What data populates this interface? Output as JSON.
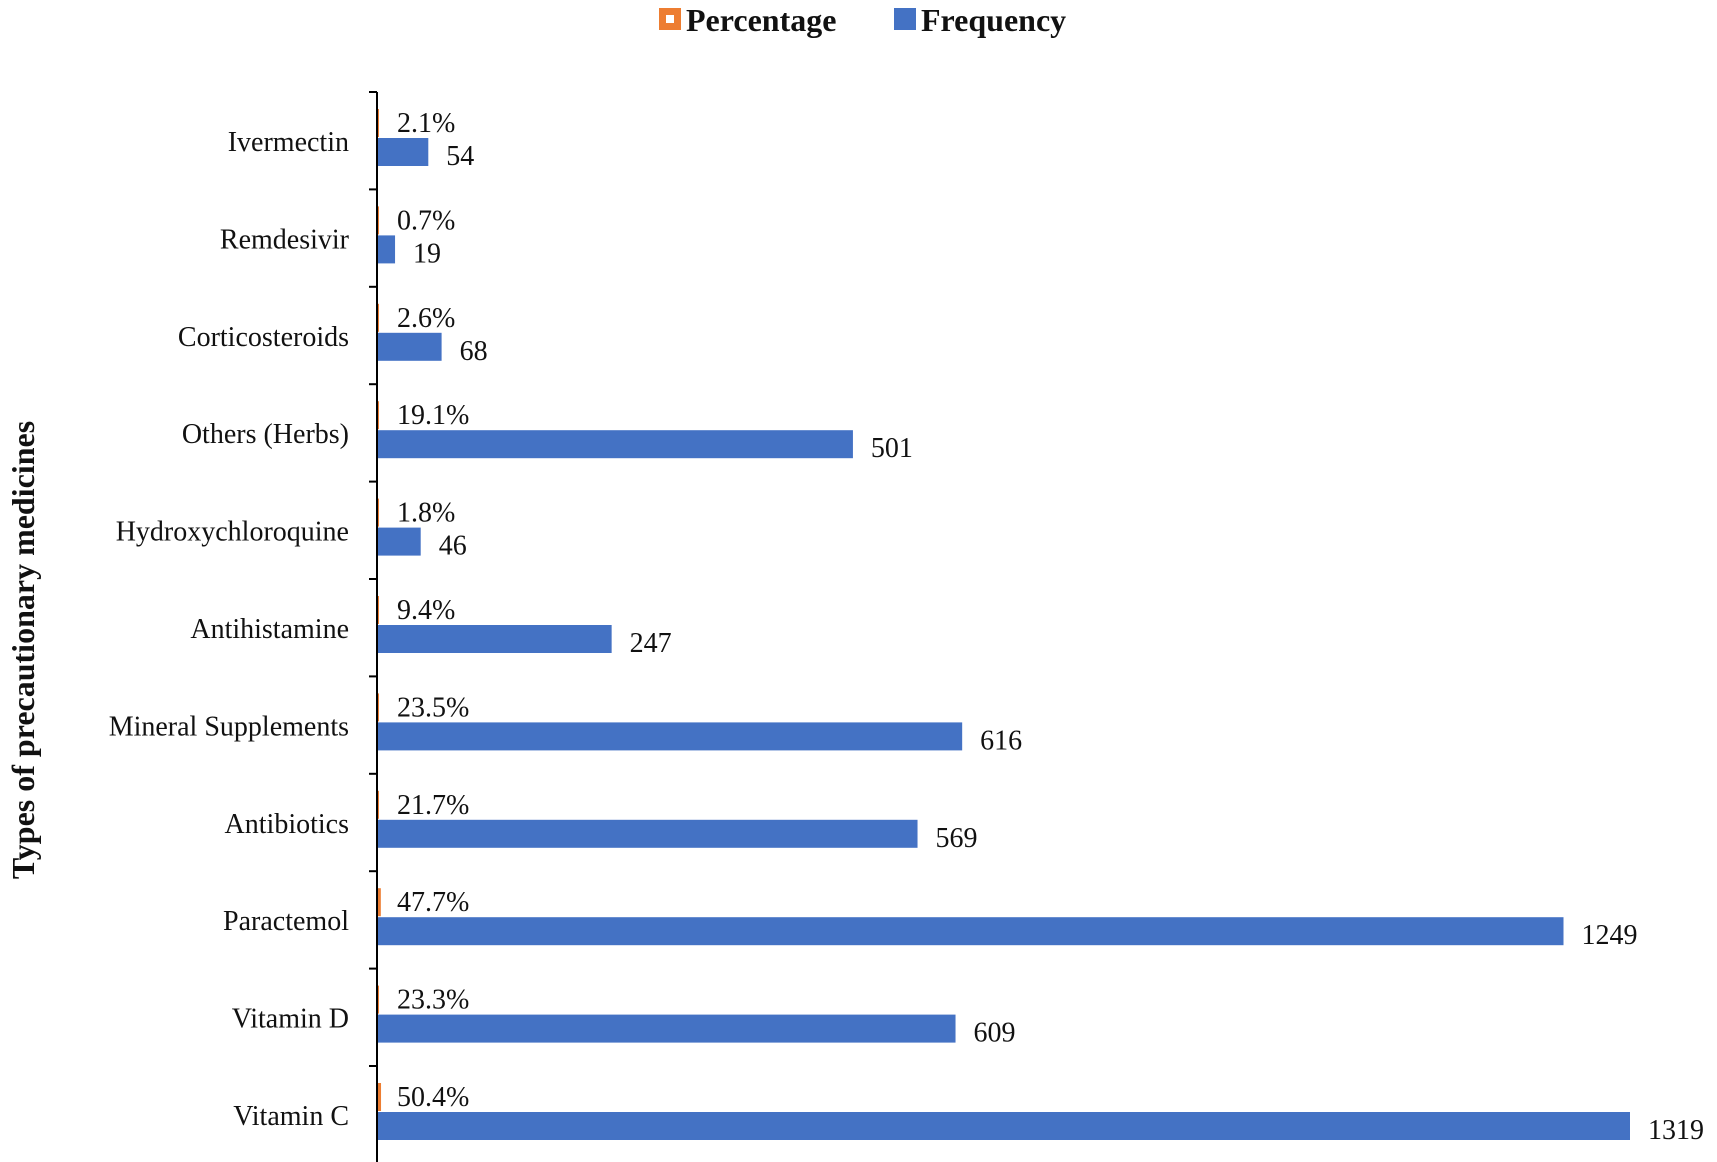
{
  "chart_data": {
    "type": "bar",
    "orientation": "horizontal",
    "title": "",
    "xlabel": "",
    "ylabel": "Types of precautionary medicines",
    "categories": [
      "Vitamin C",
      "Vitamin D",
      "Paractemol",
      "Antibiotics",
      "Mineral Supplements",
      "Antihistamine",
      "Hydroxychloroquine",
      "Others (Herbs)",
      "Corticosteroids",
      "Remdesivir",
      "Ivermectin"
    ],
    "series": [
      {
        "name": "Percentage",
        "color": "#ED7D31",
        "values": [
          50.4,
          23.3,
          47.7,
          21.7,
          23.5,
          9.4,
          1.8,
          19.1,
          2.6,
          0.7,
          2.1
        ],
        "labels": [
          "50.4%",
          "23.3%",
          "47.7%",
          "21.7%",
          "23.5%",
          "9.4%",
          "1.8%",
          "19.1%",
          "2.6%",
          "0.7%",
          "2.1%"
        ]
      },
      {
        "name": "Frequency",
        "color": "#4472C4",
        "values": [
          1319,
          609,
          1249,
          569,
          616,
          247,
          46,
          501,
          68,
          19,
          54
        ],
        "labels": [
          "1319",
          "609",
          "1249",
          "569",
          "616",
          "247",
          "46",
          "501",
          "68",
          "19",
          "54"
        ]
      }
    ],
    "xlim": [
      0,
      1319
    ],
    "grid": false,
    "legend": "top-center"
  }
}
